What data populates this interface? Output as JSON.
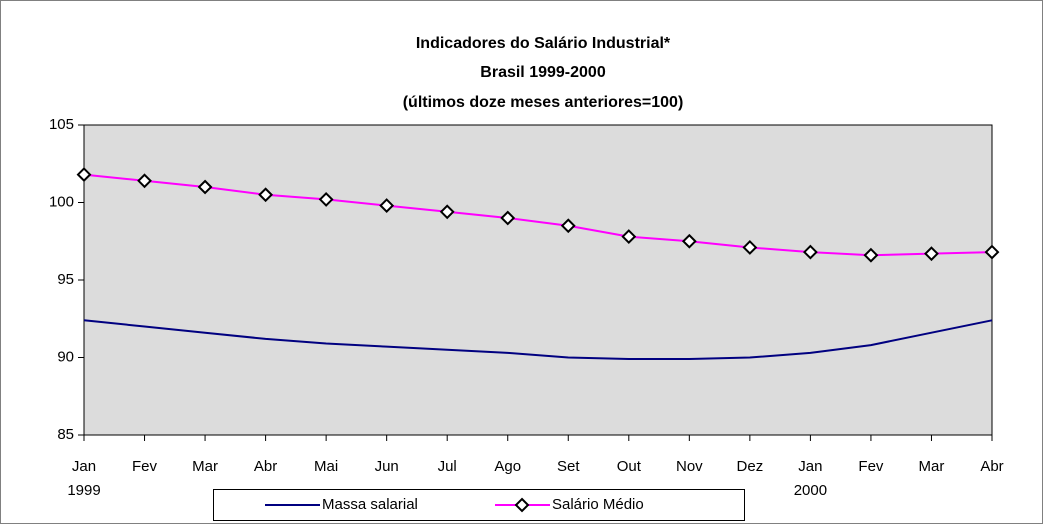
{
  "chart_data": {
    "type": "line",
    "title": [
      "Indicadores do Salário Industrial*",
      "Brasil 1999-2000",
      "(últimos doze meses anteriores=100)"
    ],
    "categories": [
      "Jan",
      "Fev",
      "Mar",
      "Abr",
      "Mai",
      "Jun",
      "Jul",
      "Ago",
      "Set",
      "Out",
      "Nov",
      "Dez",
      "Jan",
      "Fev",
      "Mar",
      "Abr"
    ],
    "years": [
      "1999",
      null,
      null,
      null,
      null,
      null,
      null,
      null,
      null,
      null,
      null,
      null,
      "2000",
      null,
      null,
      null
    ],
    "series": [
      {
        "name": "Massa salarial",
        "color": "#000080",
        "marker": false,
        "values": [
          92.4,
          92.0,
          91.6,
          91.2,
          90.9,
          90.7,
          90.5,
          90.3,
          90.0,
          89.9,
          89.9,
          90.0,
          90.3,
          90.8,
          91.6,
          92.4
        ]
      },
      {
        "name": "Salário Médio",
        "color": "#ff00ff",
        "marker": true,
        "values": [
          101.8,
          101.4,
          101.0,
          100.5,
          100.2,
          99.8,
          99.4,
          99.0,
          98.5,
          97.8,
          97.5,
          97.1,
          96.8,
          96.6,
          96.7,
          96.8
        ]
      }
    ],
    "ylim": [
      85,
      105
    ],
    "yticks": [
      85,
      90,
      95,
      100,
      105
    ],
    "grid": false,
    "legend": "bottom"
  }
}
